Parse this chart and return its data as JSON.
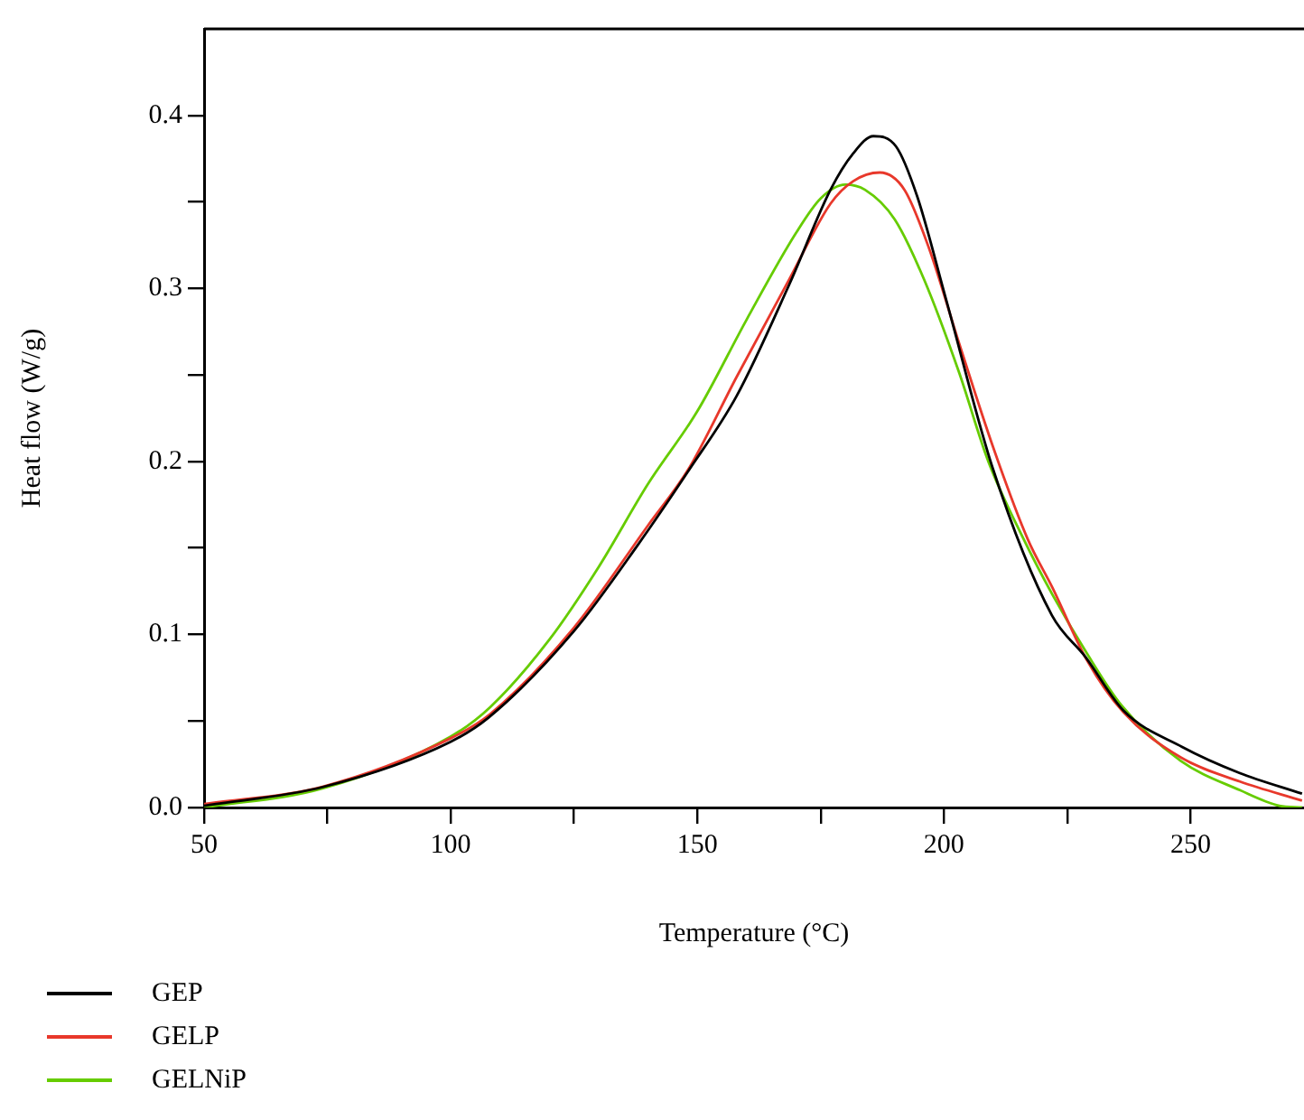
{
  "chart_data": {
    "type": "line",
    "xlabel": "Temperature (°C)",
    "ylabel": "Heat flow (W/g)",
    "xlim": [
      50,
      273
    ],
    "xticks": [
      50,
      {
        "value": 75,
        "label": null
      },
      100,
      {
        "value": 125,
        "label": null
      },
      150,
      {
        "value": 175,
        "label": null
      },
      200,
      {
        "value": 225,
        "label": null
      },
      250
    ],
    "ylim": [
      0,
      0.45
    ],
    "yticks": [
      {
        "value": 0,
        "label": "0.0"
      },
      {
        "value": 0.05,
        "label": null
      },
      0.1,
      {
        "value": 0.15,
        "label": null
      },
      0.2,
      {
        "value": 0.25,
        "label": null
      },
      0.3,
      {
        "value": 0.35,
        "label": null
      },
      0.4
    ],
    "grid": false,
    "legend": "bottom",
    "marker": "none",
    "line_style": "solid",
    "series": [
      {
        "name": "GEP",
        "color": "#000000",
        "x": [
          50,
          74.3,
          100,
          107.7,
          125,
          138,
          148.3,
          158,
          168.6,
          177,
          181.6,
          185.7,
          190.3,
          194.6,
          200.4,
          209.9,
          221.9,
          228.7,
          236.4,
          248.3,
          259.9,
          272.6
        ],
        "values": [
          0.001,
          0.012,
          0.038,
          0.052,
          0.102,
          0.152,
          0.195,
          0.238,
          0.302,
          0.357,
          0.378,
          0.388,
          0.382,
          0.353,
          0.294,
          0.196,
          0.111,
          0.087,
          0.056,
          0.035,
          0.02,
          0.008
        ]
      },
      {
        "name": "GELP",
        "color": "#e8382b",
        "x": [
          50,
          74,
          100,
          108,
          125,
          140,
          148.3,
          158,
          168.6,
          177,
          181.6,
          187,
          192,
          197,
          203,
          210,
          217,
          222,
          229,
          236.4,
          248,
          260,
          272.6
        ],
        "values": [
          0.002,
          0.012,
          0.04,
          0.054,
          0.104,
          0.163,
          0.196,
          0.249,
          0.305,
          0.349,
          0.362,
          0.367,
          0.357,
          0.323,
          0.269,
          0.208,
          0.155,
          0.127,
          0.085,
          0.055,
          0.029,
          0.015,
          0.004
        ]
      },
      {
        "name": "GELNiP",
        "color": "#66cc00",
        "x": [
          50,
          74,
          100,
          108,
          120,
          130,
          140,
          150,
          160,
          170,
          175,
          180,
          184,
          190,
          196,
          203,
          209,
          216,
          222,
          229,
          236,
          248,
          260,
          268,
          272.6
        ],
        "values": [
          0.0,
          0.011,
          0.041,
          0.058,
          0.097,
          0.139,
          0.187,
          0.229,
          0.282,
          0.332,
          0.352,
          0.36,
          0.357,
          0.34,
          0.305,
          0.252,
          0.2,
          0.156,
          0.123,
          0.089,
          0.059,
          0.027,
          0.01,
          0.001,
          0.0
        ]
      }
    ]
  }
}
